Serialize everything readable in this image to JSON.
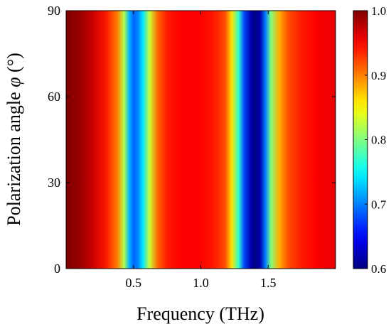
{
  "chart_data": {
    "type": "heatmap",
    "title": "",
    "xlabel": "Frequency (THz)",
    "ylabel_text": "Polarization angle ",
    "ylabel_symbol": "φ",
    "ylabel_unit": " (°)",
    "xlim": [
      0.0,
      2.0
    ],
    "ylim": [
      0,
      90
    ],
    "x_ticks": [
      0.5,
      1.0,
      1.5
    ],
    "x_tick_labels": [
      "0.5",
      "1.0",
      "1.5"
    ],
    "y_ticks": [
      0,
      30,
      60,
      90
    ],
    "y_tick_labels": [
      "0",
      "30",
      "60",
      "90"
    ],
    "colorbar": {
      "range": [
        0.6,
        1.0
      ],
      "ticks": [
        0.6,
        0.7,
        0.8,
        0.9,
        1.0
      ],
      "tick_labels": [
        "0.6",
        "0.7",
        "0.8",
        "0.9",
        "1.0"
      ],
      "colormap": "jet"
    },
    "note_values": "value is independent of polarization angle; profile along frequency",
    "profile": {
      "frequency": [
        0.0,
        0.1,
        0.2,
        0.3,
        0.38,
        0.43,
        0.47,
        0.5,
        0.53,
        0.57,
        0.62,
        0.68,
        0.75,
        0.85,
        1.0,
        1.1,
        1.18,
        1.23,
        1.28,
        1.32,
        1.37,
        1.4,
        1.44,
        1.48,
        1.52,
        1.58,
        1.65,
        1.75,
        1.85,
        2.0
      ],
      "value": [
        1.0,
        0.99,
        0.97,
        0.94,
        0.9,
        0.82,
        0.72,
        0.69,
        0.7,
        0.74,
        0.83,
        0.91,
        0.94,
        0.95,
        0.95,
        0.94,
        0.92,
        0.86,
        0.77,
        0.68,
        0.62,
        0.6,
        0.62,
        0.7,
        0.8,
        0.88,
        0.92,
        0.94,
        0.95,
        0.96
      ]
    }
  }
}
